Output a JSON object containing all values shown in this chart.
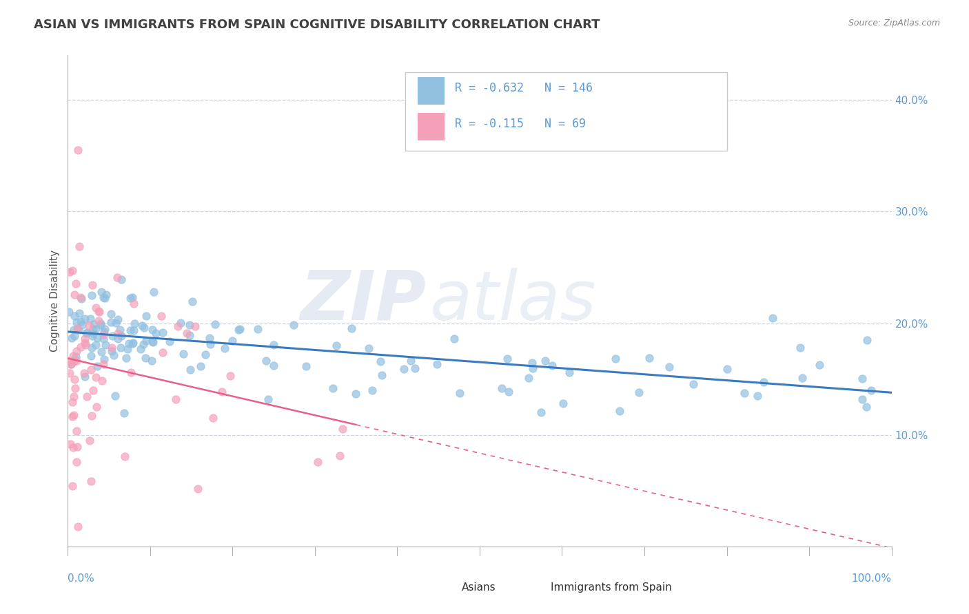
{
  "title": "ASIAN VS IMMIGRANTS FROM SPAIN COGNITIVE DISABILITY CORRELATION CHART",
  "source": "Source: ZipAtlas.com",
  "ylabel": "Cognitive Disability",
  "watermark_zip": "ZIP",
  "watermark_atlas": "atlas",
  "legend": {
    "blue_r": "-0.632",
    "blue_n": "146",
    "pink_r": "-0.115",
    "pink_n": "69"
  },
  "blue_color": "#92c0e0",
  "pink_color": "#f4a0b8",
  "blue_line_color": "#3a7abf",
  "pink_line_color": "#e8608a",
  "background_color": "#ffffff",
  "title_color": "#404040",
  "axis_color": "#5b9bd5",
  "xlim": [
    0.0,
    1.0
  ],
  "ylim": [
    0.0,
    0.44
  ],
  "yticks": [
    0.1,
    0.2,
    0.3,
    0.4
  ],
  "ytick_labels": [
    "10.0%",
    "20.0%",
    "30.0%",
    "40.0%"
  ]
}
